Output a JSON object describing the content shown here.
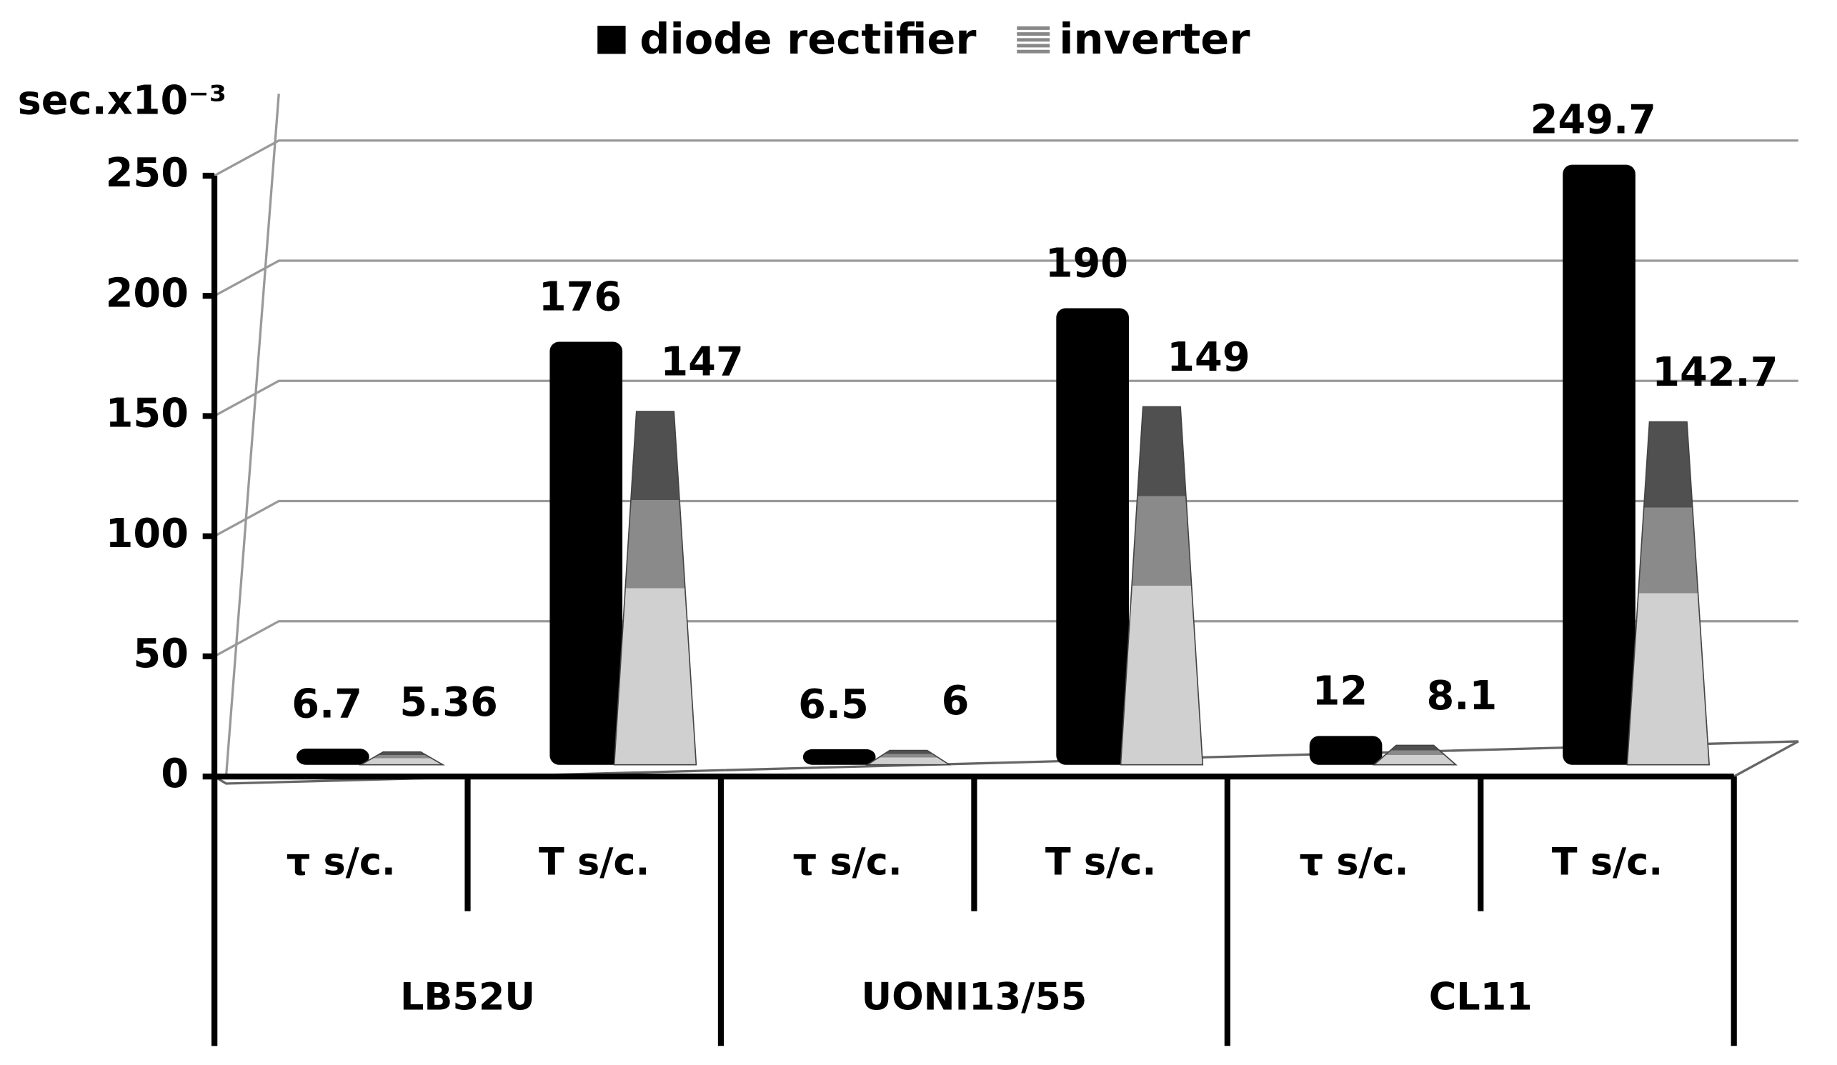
{
  "chart_data": {
    "type": "bar",
    "y_label": "sec.x10⁻³",
    "groups": [
      "LB52U",
      "UONI13/55",
      "CL11"
    ],
    "categories": [
      "τ s/c.",
      "T s/c.",
      "τ s/c.",
      "T s/c.",
      "τ s/c.",
      "T s/c."
    ],
    "series": [
      {
        "name": "diode rectifier",
        "color": "#000000",
        "values": [
          6.7,
          176,
          6.5,
          190,
          12,
          249.7
        ]
      },
      {
        "name": "inverter",
        "color": "#888888",
        "values": [
          5.36,
          147,
          6,
          149,
          8.1,
          142.7
        ]
      }
    ],
    "ylim": [
      0,
      250
    ],
    "yticks": [
      0,
      50,
      100,
      150,
      200,
      250
    ],
    "grid": true,
    "legend": "top"
  }
}
